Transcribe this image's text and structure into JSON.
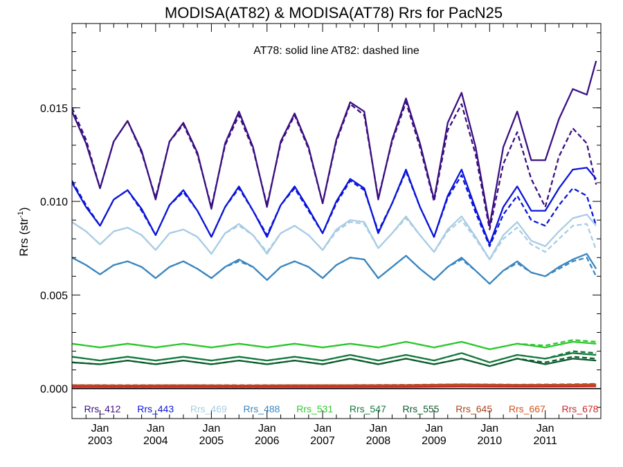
{
  "chart_data": {
    "type": "line",
    "title": "MODISA(AT82) & MODISA(AT78)  Rrs for PacN25",
    "annotation": "AT78: solid line   AT82: dashed line",
    "ylabel": "Rrs (str",
    "ylabel_sup": "-1",
    "ylabel_close": ")",
    "ylim": [
      -0.0016,
      0.0195
    ],
    "xlim": [
      "2002-07-01",
      "2012-01-01"
    ],
    "yticks": [
      {
        "value": 0.0,
        "label": "0.000"
      },
      {
        "value": 0.005,
        "label": "0.005"
      },
      {
        "value": 0.01,
        "label": "0.010"
      },
      {
        "value": 0.015,
        "label": "0.015"
      }
    ],
    "xticks": [
      {
        "date": "2003-01-01",
        "month": "Jan",
        "year": "2003"
      },
      {
        "date": "2004-01-01",
        "month": "Jan",
        "year": "2004"
      },
      {
        "date": "2005-01-01",
        "month": "Jan",
        "year": "2005"
      },
      {
        "date": "2006-01-01",
        "month": "Jan",
        "year": "2006"
      },
      {
        "date": "2007-01-01",
        "month": "Jan",
        "year": "2007"
      },
      {
        "date": "2008-01-01",
        "month": "Jan",
        "year": "2008"
      },
      {
        "date": "2009-01-01",
        "month": "Jan",
        "year": "2009"
      },
      {
        "date": "2010-01-01",
        "month": "Jan",
        "year": "2010"
      },
      {
        "date": "2011-01-01",
        "month": "Jan",
        "year": "2011"
      }
    ],
    "line_styles": {
      "AT78": "solid",
      "AT82": "dashed"
    },
    "legend_position": "bottom",
    "series": [
      {
        "name": "Rrs_412",
        "color": "#3a0f82",
        "dates": [
          "2002-07",
          "2002-10",
          "2003-01",
          "2003-04",
          "2003-07",
          "2003-10",
          "2004-01",
          "2004-04",
          "2004-07",
          "2004-10",
          "2005-01",
          "2005-04",
          "2005-07",
          "2005-10",
          "2006-01",
          "2006-04",
          "2006-07",
          "2006-10",
          "2007-01",
          "2007-04",
          "2007-07",
          "2007-10",
          "2008-01",
          "2008-04",
          "2008-07",
          "2008-10",
          "2009-01",
          "2009-04",
          "2009-07",
          "2009-10",
          "2010-01",
          "2010-04",
          "2010-07",
          "2010-10",
          "2011-01",
          "2011-04",
          "2011-07",
          "2011-10",
          "2011-12"
        ],
        "values": [
          0.0148,
          0.0131,
          0.0107,
          0.0132,
          0.0143,
          0.0127,
          0.0101,
          0.0132,
          0.0142,
          0.0126,
          0.0096,
          0.0131,
          0.0148,
          0.0129,
          0.0097,
          0.0132,
          0.0147,
          0.0129,
          0.0099,
          0.0133,
          0.0153,
          0.0148,
          0.0101,
          0.0133,
          0.0155,
          0.0131,
          0.0101,
          0.0142,
          0.0158,
          0.0129,
          0.0087,
          0.0129,
          0.0148,
          0.0122,
          0.0122,
          0.0144,
          0.016,
          0.0157,
          0.0175
        ],
        "values_dashed": [
          0.015,
          0.0133,
          0.0107,
          0.0132,
          0.0143,
          0.0126,
          0.0102,
          0.0132,
          0.0141,
          0.0125,
          0.0097,
          0.013,
          0.0146,
          0.0128,
          0.0098,
          0.0131,
          0.0146,
          0.0128,
          0.0099,
          0.0132,
          0.0152,
          0.0146,
          0.0102,
          0.0132,
          0.0153,
          0.0129,
          0.01,
          0.0138,
          0.0152,
          0.0125,
          0.0085,
          0.012,
          0.0137,
          0.0112,
          0.0097,
          0.0124,
          0.0139,
          0.0131,
          0.0109
        ]
      },
      {
        "name": "Rrs_443",
        "color": "#0a14d8",
        "dates": [
          "2002-07",
          "2002-10",
          "2003-01",
          "2003-04",
          "2003-07",
          "2003-10",
          "2004-01",
          "2004-04",
          "2004-07",
          "2004-10",
          "2005-01",
          "2005-04",
          "2005-07",
          "2005-10",
          "2006-01",
          "2006-04",
          "2006-07",
          "2006-10",
          "2007-01",
          "2007-04",
          "2007-07",
          "2007-10",
          "2008-01",
          "2008-04",
          "2008-07",
          "2008-10",
          "2009-01",
          "2009-04",
          "2009-07",
          "2009-10",
          "2010-01",
          "2010-04",
          "2010-07",
          "2010-10",
          "2011-01",
          "2011-04",
          "2011-07",
          "2011-10",
          "2011-12"
        ],
        "values": [
          0.011,
          0.0097,
          0.0087,
          0.0101,
          0.0106,
          0.0096,
          0.0082,
          0.0098,
          0.0106,
          0.0095,
          0.0081,
          0.0097,
          0.0108,
          0.0095,
          0.0081,
          0.0098,
          0.0108,
          0.0096,
          0.0083,
          0.01,
          0.0112,
          0.0107,
          0.0083,
          0.0099,
          0.0117,
          0.0097,
          0.0081,
          0.0103,
          0.0117,
          0.0096,
          0.0077,
          0.0097,
          0.0108,
          0.0095,
          0.0095,
          0.0107,
          0.0117,
          0.0118,
          0.0112
        ],
        "values_dashed": [
          0.0111,
          0.0098,
          0.0087,
          0.0101,
          0.0106,
          0.0095,
          0.0082,
          0.0098,
          0.0105,
          0.0095,
          0.0081,
          0.0097,
          0.0107,
          0.0095,
          0.0082,
          0.0098,
          0.0107,
          0.0095,
          0.0083,
          0.0099,
          0.0111,
          0.0106,
          0.0084,
          0.0099,
          0.0116,
          0.0097,
          0.0081,
          0.0102,
          0.0114,
          0.0094,
          0.0076,
          0.0093,
          0.0103,
          0.009,
          0.0087,
          0.0098,
          0.0107,
          0.0103,
          0.0087
        ]
      },
      {
        "name": "Rrs_469",
        "color": "#a8cce4",
        "dates": [
          "2002-07",
          "2002-10",
          "2003-01",
          "2003-04",
          "2003-07",
          "2003-10",
          "2004-01",
          "2004-04",
          "2004-07",
          "2004-10",
          "2005-01",
          "2005-04",
          "2005-07",
          "2005-10",
          "2006-01",
          "2006-04",
          "2006-07",
          "2006-10",
          "2007-01",
          "2007-04",
          "2007-07",
          "2007-10",
          "2008-01",
          "2008-04",
          "2008-07",
          "2008-10",
          "2009-01",
          "2009-04",
          "2009-07",
          "2009-10",
          "2010-01",
          "2010-04",
          "2010-07",
          "2010-10",
          "2011-01",
          "2011-04",
          "2011-07",
          "2011-10",
          "2011-12"
        ],
        "values": [
          0.0089,
          0.0084,
          0.0077,
          0.0084,
          0.0086,
          0.0082,
          0.0074,
          0.0083,
          0.0085,
          0.0081,
          0.0072,
          0.0083,
          0.0088,
          0.0082,
          0.0072,
          0.0083,
          0.0087,
          0.0082,
          0.0074,
          0.0085,
          0.009,
          0.0089,
          0.0075,
          0.0083,
          0.0092,
          0.0082,
          0.0073,
          0.0085,
          0.0092,
          0.0081,
          0.0069,
          0.0082,
          0.0089,
          0.0079,
          0.0076,
          0.0084,
          0.0091,
          0.0093,
          0.0087
        ],
        "values_dashed": [
          0.0089,
          0.0084,
          0.0077,
          0.0084,
          0.0086,
          0.0082,
          0.0074,
          0.0083,
          0.0085,
          0.0081,
          0.0072,
          0.0083,
          0.0087,
          0.0082,
          0.0073,
          0.0083,
          0.0087,
          0.0082,
          0.0074,
          0.0084,
          0.0089,
          0.0088,
          0.0075,
          0.0083,
          0.0091,
          0.0082,
          0.0073,
          0.0084,
          0.009,
          0.008,
          0.0069,
          0.008,
          0.0086,
          0.0077,
          0.0073,
          0.008,
          0.0087,
          0.0088,
          0.0074
        ]
      },
      {
        "name": "Rrs_488",
        "color": "#3a86c0",
        "dates": [
          "2002-07",
          "2002-10",
          "2003-01",
          "2003-04",
          "2003-07",
          "2003-10",
          "2004-01",
          "2004-04",
          "2004-07",
          "2004-10",
          "2005-01",
          "2005-04",
          "2005-07",
          "2005-10",
          "2006-01",
          "2006-04",
          "2006-07",
          "2006-10",
          "2007-01",
          "2007-04",
          "2007-07",
          "2007-10",
          "2008-01",
          "2008-04",
          "2008-07",
          "2008-10",
          "2009-01",
          "2009-04",
          "2009-07",
          "2009-10",
          "2010-01",
          "2010-04",
          "2010-07",
          "2010-10",
          "2011-01",
          "2011-04",
          "2011-07",
          "2011-10",
          "2011-12"
        ],
        "values": [
          0.007,
          0.0066,
          0.0061,
          0.0066,
          0.0068,
          0.0065,
          0.0059,
          0.0065,
          0.0068,
          0.0064,
          0.0059,
          0.0065,
          0.0069,
          0.0065,
          0.0058,
          0.0065,
          0.0068,
          0.0065,
          0.0059,
          0.0066,
          0.007,
          0.0069,
          0.0059,
          0.0065,
          0.0071,
          0.0064,
          0.0058,
          0.0065,
          0.007,
          0.0063,
          0.0056,
          0.0063,
          0.0068,
          0.0062,
          0.006,
          0.0065,
          0.0069,
          0.0072,
          0.0064
        ],
        "values_dashed": [
          0.007,
          0.0066,
          0.0061,
          0.0066,
          0.0068,
          0.0065,
          0.0059,
          0.0065,
          0.0068,
          0.0064,
          0.0059,
          0.0065,
          0.0068,
          0.0065,
          0.0058,
          0.0065,
          0.0068,
          0.0065,
          0.0059,
          0.0066,
          0.007,
          0.0069,
          0.0059,
          0.0065,
          0.0071,
          0.0064,
          0.0058,
          0.0065,
          0.0069,
          0.0063,
          0.0056,
          0.0063,
          0.0067,
          0.0062,
          0.006,
          0.0064,
          0.0068,
          0.007,
          0.006
        ]
      },
      {
        "name": "Rrs_531",
        "color": "#2ec82e",
        "dates": [
          "2002-07",
          "2003-01",
          "2003-07",
          "2004-01",
          "2004-07",
          "2005-01",
          "2005-07",
          "2006-01",
          "2006-07",
          "2007-01",
          "2007-07",
          "2008-01",
          "2008-07",
          "2009-01",
          "2009-07",
          "2010-01",
          "2010-07",
          "2011-01",
          "2011-07",
          "2011-12"
        ],
        "values": [
          0.0024,
          0.0022,
          0.0024,
          0.0022,
          0.0024,
          0.0022,
          0.0024,
          0.0022,
          0.0024,
          0.0022,
          0.0024,
          0.0022,
          0.0025,
          0.0022,
          0.0025,
          0.0021,
          0.0024,
          0.0022,
          0.0025,
          0.0024
        ],
        "values_dashed": [
          0.0024,
          0.0022,
          0.0024,
          0.0022,
          0.0024,
          0.0022,
          0.0024,
          0.0022,
          0.0024,
          0.0022,
          0.0024,
          0.0022,
          0.0025,
          0.0022,
          0.0025,
          0.0021,
          0.0024,
          0.0023,
          0.0026,
          0.0025
        ]
      },
      {
        "name": "Rrs_547",
        "color": "#127a3c",
        "dates": [
          "2002-07",
          "2003-01",
          "2003-07",
          "2004-01",
          "2004-07",
          "2005-01",
          "2005-07",
          "2006-01",
          "2006-07",
          "2007-01",
          "2007-07",
          "2008-01",
          "2008-07",
          "2009-01",
          "2009-07",
          "2010-01",
          "2010-07",
          "2011-01",
          "2011-07",
          "2011-12"
        ],
        "values": [
          0.0017,
          0.0015,
          0.0017,
          0.0015,
          0.0017,
          0.0015,
          0.0017,
          0.0015,
          0.0017,
          0.0015,
          0.0018,
          0.0015,
          0.0018,
          0.0015,
          0.0019,
          0.0014,
          0.0018,
          0.0016,
          0.0019,
          0.0018
        ],
        "values_dashed": [
          0.0017,
          0.0015,
          0.0017,
          0.0015,
          0.0017,
          0.0015,
          0.0017,
          0.0015,
          0.0017,
          0.0015,
          0.0018,
          0.0015,
          0.0018,
          0.0015,
          0.0019,
          0.0014,
          0.0018,
          0.0016,
          0.002,
          0.0019
        ]
      },
      {
        "name": "Rrs_555",
        "color": "#0c5a2c",
        "dates": [
          "2002-07",
          "2003-01",
          "2003-07",
          "2004-01",
          "2004-07",
          "2005-01",
          "2005-07",
          "2006-01",
          "2006-07",
          "2007-01",
          "2007-07",
          "2008-01",
          "2008-07",
          "2009-01",
          "2009-07",
          "2010-01",
          "2010-07",
          "2011-01",
          "2011-07",
          "2011-12"
        ],
        "values": [
          0.0014,
          0.0013,
          0.0015,
          0.0013,
          0.0015,
          0.0013,
          0.0015,
          0.0013,
          0.0015,
          0.0013,
          0.0016,
          0.0013,
          0.0016,
          0.0013,
          0.0016,
          0.0012,
          0.0016,
          0.0013,
          0.0016,
          0.0015
        ],
        "values_dashed": [
          0.0014,
          0.0013,
          0.0015,
          0.0013,
          0.0015,
          0.0013,
          0.0015,
          0.0013,
          0.0015,
          0.0013,
          0.0016,
          0.0013,
          0.0016,
          0.0013,
          0.0016,
          0.0012,
          0.0016,
          0.0014,
          0.0017,
          0.0016
        ]
      },
      {
        "name": "Rrs_645",
        "color": "#a8441c",
        "dates": [
          "2002-07",
          "2003-07",
          "2004-07",
          "2005-07",
          "2006-07",
          "2007-07",
          "2008-07",
          "2009-07",
          "2010-07",
          "2011-07",
          "2011-12"
        ],
        "values": [
          0.00018,
          0.00017,
          0.00018,
          0.00017,
          0.00018,
          0.00018,
          0.00019,
          0.00022,
          0.0002,
          0.00021,
          0.00023
        ],
        "values_dashed": [
          0.00019,
          0.00018,
          0.00018,
          0.00018,
          0.00018,
          0.00019,
          0.0002,
          0.00023,
          0.00021,
          0.00023,
          0.00025
        ]
      },
      {
        "name": "Rrs_667",
        "color": "#d8501a",
        "dates": [
          "2002-07",
          "2003-07",
          "2004-07",
          "2005-07",
          "2006-07",
          "2007-07",
          "2008-07",
          "2009-07",
          "2010-07",
          "2011-07",
          "2011-12"
        ],
        "values": [
          0.00012,
          0.00011,
          0.00012,
          0.00011,
          0.00012,
          0.00012,
          0.00013,
          0.00016,
          0.00014,
          0.00015,
          0.00017
        ],
        "values_dashed": [
          0.00013,
          0.00012,
          0.00012,
          0.00012,
          0.00012,
          0.00013,
          0.00014,
          0.00017,
          0.00015,
          0.00017,
          0.00019
        ]
      },
      {
        "name": "Rrs_678",
        "color": "#c82828",
        "dates": [
          "2002-07",
          "2003-07",
          "2004-07",
          "2005-07",
          "2006-07",
          "2007-07",
          "2008-07",
          "2009-07",
          "2010-07",
          "2011-07",
          "2011-12"
        ],
        "values": [
          8e-05,
          8e-05,
          8e-05,
          8e-05,
          8e-05,
          8e-05,
          9e-05,
          0.00011,
          0.0001,
          0.00011,
          0.00012
        ],
        "values_dashed": [
          9e-05,
          8e-05,
          9e-05,
          8e-05,
          9e-05,
          9e-05,
          0.0001,
          0.00012,
          0.00011,
          0.00012,
          0.00013
        ]
      }
    ],
    "zero_line": true,
    "grid": false
  }
}
